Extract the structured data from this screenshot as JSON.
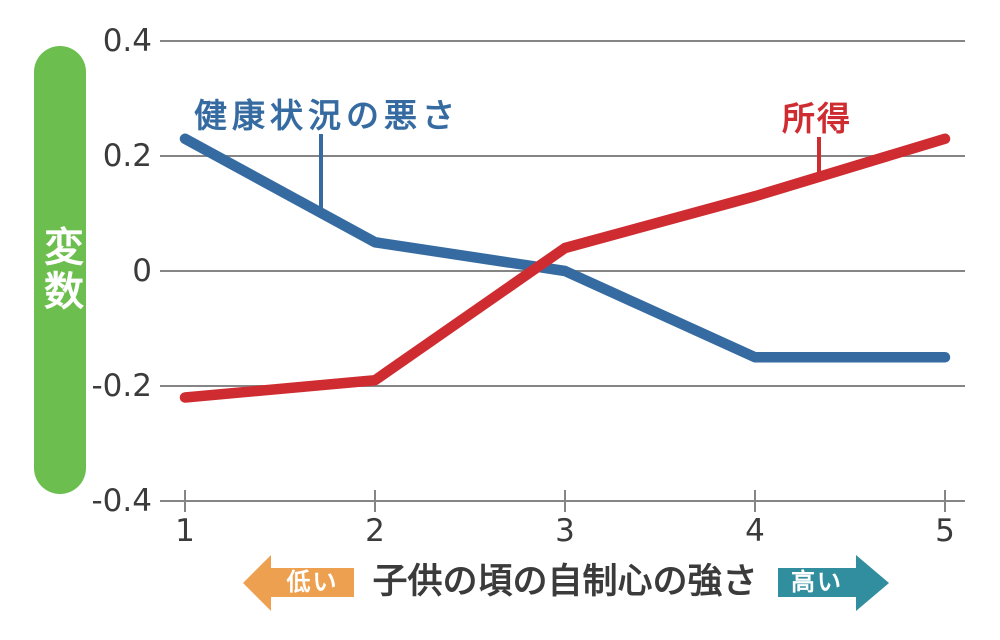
{
  "colors": {
    "green_bar": "#6cbf4e",
    "blue_series": "#366ba2",
    "red_series": "#cf2c31",
    "orange_arrow": "#eda050",
    "teal_arrow": "#318e9e",
    "grid": "#858585",
    "text_dark": "#3b3b3b"
  },
  "y_axis_bar": {
    "label": "変数"
  },
  "x_axis_footer": {
    "low_badge": "低い",
    "title": "子供の頃の自制心の強さ",
    "high_badge": "高い"
  },
  "chart_data": {
    "type": "line",
    "x": [
      1,
      2,
      3,
      4,
      5
    ],
    "x_tick_labels": [
      "1",
      "2",
      "3",
      "4",
      "5"
    ],
    "y_ticks": [
      0.4,
      0.2,
      0,
      -0.2,
      -0.4
    ],
    "y_tick_labels": [
      "0.4",
      "0.2",
      "0",
      "-0.2",
      "-0.4"
    ],
    "xlim": [
      1,
      5
    ],
    "ylim": [
      -0.4,
      0.4
    ],
    "grid": true,
    "xlabel": "子供の頃の自制心の強さ",
    "ylabel": "変数",
    "legend_position": "inline-annotations",
    "series": [
      {
        "name": "健康状況の悪さ",
        "color_key": "blue_series",
        "values": [
          0.23,
          0.05,
          0,
          -0.15,
          -0.15
        ]
      },
      {
        "name": "所得",
        "color_key": "red_series",
        "values": [
          -0.22,
          -0.19,
          0.04,
          0.13,
          0.23
        ]
      }
    ],
    "annotations": [
      {
        "text": "健康状況の悪さ",
        "color_key": "blue_series",
        "anchor_x": 1.72
      },
      {
        "text": "所得",
        "color_key": "red_series",
        "anchor_x": 4.34
      }
    ]
  }
}
